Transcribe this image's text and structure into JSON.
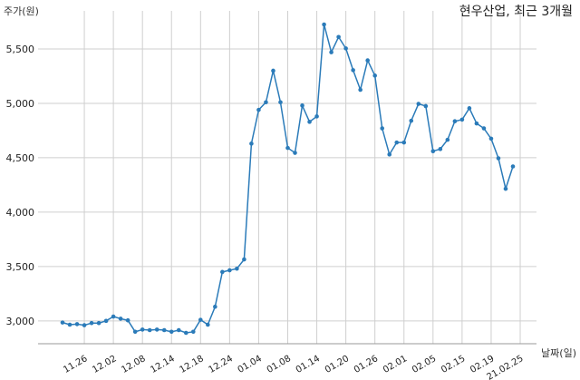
{
  "chart_data": {
    "type": "line",
    "title": "현우산업, 최근 3개월",
    "xlabel": "날짜(일)",
    "ylabel": "주가(원)",
    "ylim": [
      2790,
      5850
    ],
    "y_ticks": [
      "3,000",
      "3,500",
      "4,000",
      "4,500",
      "5,000",
      "5,500"
    ],
    "y_tick_values": [
      3000,
      3500,
      4000,
      4500,
      5000,
      5500
    ],
    "x_tick_labels": [
      "11.26",
      "12.02",
      "12.08",
      "12.14",
      "12.18",
      "12.24",
      "01.04",
      "01.08",
      "01.14",
      "01.20",
      "01.26",
      "02.01",
      "02.05",
      "02.15",
      "02.19",
      "21.02.25"
    ],
    "x_tick_index": [
      3,
      7,
      11,
      15,
      19,
      23,
      27,
      31,
      35,
      39,
      43,
      47,
      51,
      55,
      59,
      63
    ],
    "grid": true,
    "color": "#2b7bb9",
    "series": [
      {
        "values": [
          2985,
          2965,
          2970,
          2960,
          2980,
          2980,
          3000,
          3040,
          3020,
          3005,
          2900,
          2920,
          2915,
          2920,
          2915,
          2900,
          2915,
          2890,
          2900,
          3010,
          2965,
          3130,
          3450,
          3465,
          3480,
          3565,
          4630,
          4940,
          5010,
          5300,
          5010,
          4590,
          4545,
          4980,
          4830,
          4880,
          5725,
          5470,
          5610,
          5505,
          5305,
          5125,
          5395,
          5255,
          4770,
          4530,
          4640,
          4640,
          4840,
          4995,
          4975,
          4560,
          4580,
          4665,
          4835,
          4850,
          4955,
          4815,
          4770,
          4675,
          4495,
          4215,
          4420
        ]
      }
    ]
  }
}
